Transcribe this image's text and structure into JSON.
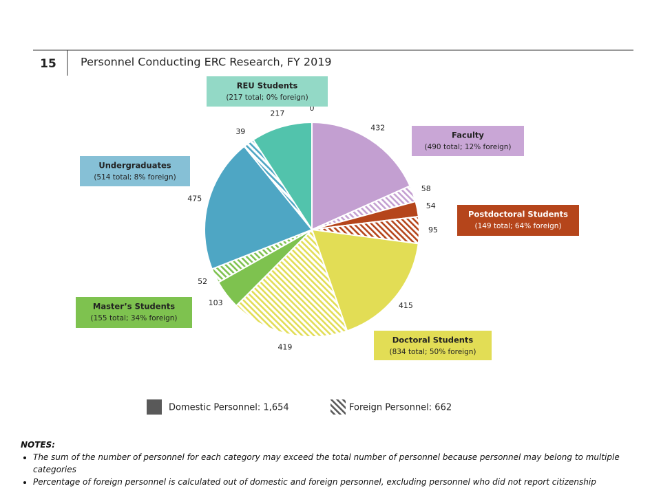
{
  "slide_number": "15",
  "chart_data": {
    "type": "pie",
    "title": "Personnel Conducting ERC Research, FY 2019",
    "groups": [
      {
        "name": "Faculty",
        "detail": "(490 total; 12% foreign)",
        "color": "#c39fd1",
        "values": [
          432,
          58
        ]
      },
      {
        "name": "Postdoctoral Students",
        "detail": "(149 total; 64% foreign)",
        "color": "#b5451b",
        "values": [
          54,
          95
        ]
      },
      {
        "name": "Doctoral Students",
        "detail": "(834 total; 50% foreign)",
        "color": "#e2dd55",
        "values": [
          415,
          419
        ]
      },
      {
        "name": "Master’s Students",
        "detail": "(155 total; 34% foreign)",
        "color": "#7ec24f",
        "values": [
          103,
          52
        ]
      },
      {
        "name": "Undergraduates",
        "detail": "(514 total; 8% foreign)",
        "color": "#4ea6c4",
        "values": [
          475,
          39
        ]
      },
      {
        "name": "REU Students",
        "detail": "(217 total; 0% foreign)",
        "color": "#52c3ac",
        "values": [
          217,
          0
        ]
      }
    ],
    "legend": [
      "Domestic Personnel: 1,654",
      "Foreign Personnel: 662"
    ]
  },
  "notes": {
    "heading": "NOTES:",
    "items": [
      "The sum of the number of personnel for each category may exceed the total number of personnel because personnel may belong to multiple categories",
      "Percentage of foreign personnel is calculated out of domestic and foreign personnel, excluding personnel who did not report citizenship"
    ]
  }
}
